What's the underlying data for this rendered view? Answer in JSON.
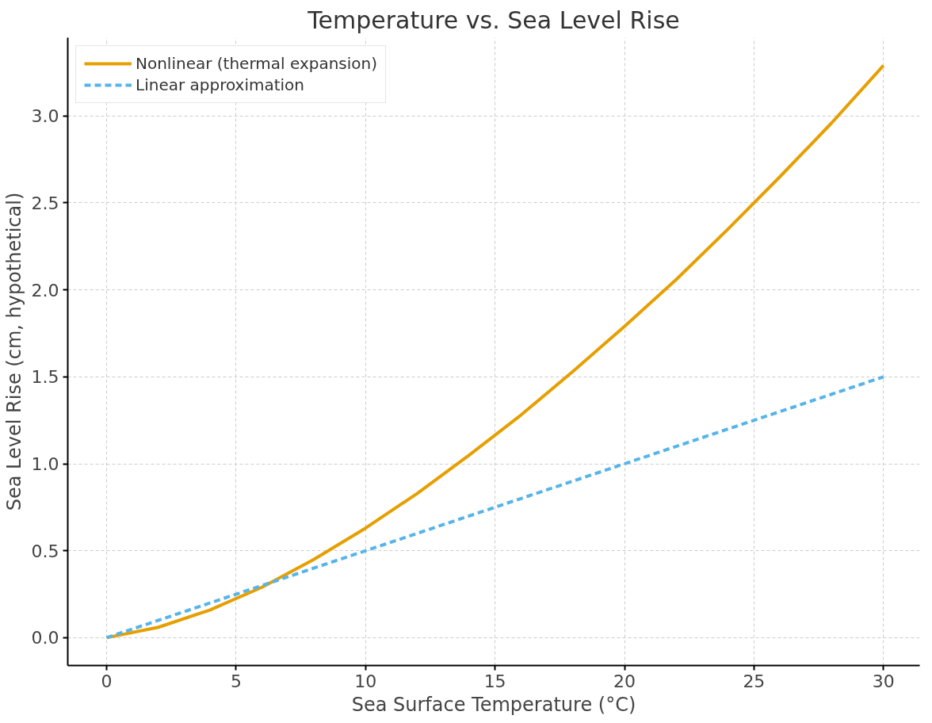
{
  "chart_data": {
    "type": "line",
    "title": "Temperature vs. Sea Level Rise",
    "xlabel": "Sea Surface Temperature (°C)",
    "ylabel": "Sea Level Rise (cm, hypothetical)",
    "series": [
      {
        "name": "Nonlinear (thermal expansion)",
        "color": "#e69f00",
        "line_style": "solid",
        "x": [
          0,
          2,
          4,
          6,
          8,
          10,
          12,
          14,
          16,
          18,
          20,
          22,
          24,
          26,
          28,
          30
        ],
        "values": [
          0,
          0.06,
          0.16,
          0.29,
          0.45,
          0.63,
          0.83,
          1.05,
          1.28,
          1.53,
          1.79,
          2.06,
          2.35,
          2.65,
          2.96,
          3.29
        ]
      },
      {
        "name": "Linear approximation",
        "color": "#56b4e9",
        "line_style": "dashed",
        "x": [
          0,
          30
        ],
        "values": [
          0,
          1.5
        ]
      }
    ],
    "xlim": [
      -1.5,
      31.4
    ],
    "ylim": [
      -0.16,
      3.45
    ],
    "xticks": [
      0,
      5,
      10,
      15,
      20,
      25,
      30
    ],
    "yticks": [
      {
        "value": 0,
        "label": "0.0"
      },
      0.5,
      {
        "value": 1,
        "label": "1.0"
      },
      1.5,
      {
        "value": 2,
        "label": "2.0"
      },
      2.5,
      {
        "value": 3,
        "label": "3.0"
      }
    ],
    "grid": true,
    "legend": "top left",
    "marker": "none"
  }
}
